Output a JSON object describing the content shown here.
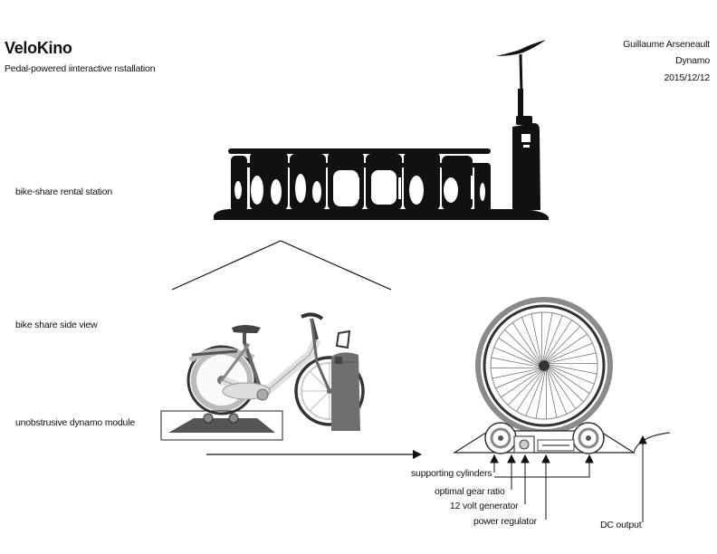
{
  "header": {
    "title": "VeloKino",
    "subtitle": "Pedal-powered iinteractive nstallation",
    "author": "Guillaume Arseneault",
    "company": "Dynamo",
    "date": "2015/12/12"
  },
  "labels": {
    "station": "bike-share rental station",
    "side_view": "bike share side view",
    "dynamo_module": "unobstrusive dynamo module"
  },
  "callouts": [
    "supporting cylinders",
    "optimal gear ratio",
    "12 volt generator",
    "power regulator",
    "DC output"
  ],
  "colors": {
    "ink": "#111111",
    "wheel_gray": "#8a8a8a",
    "dock_gray": "#6f6f6f"
  }
}
